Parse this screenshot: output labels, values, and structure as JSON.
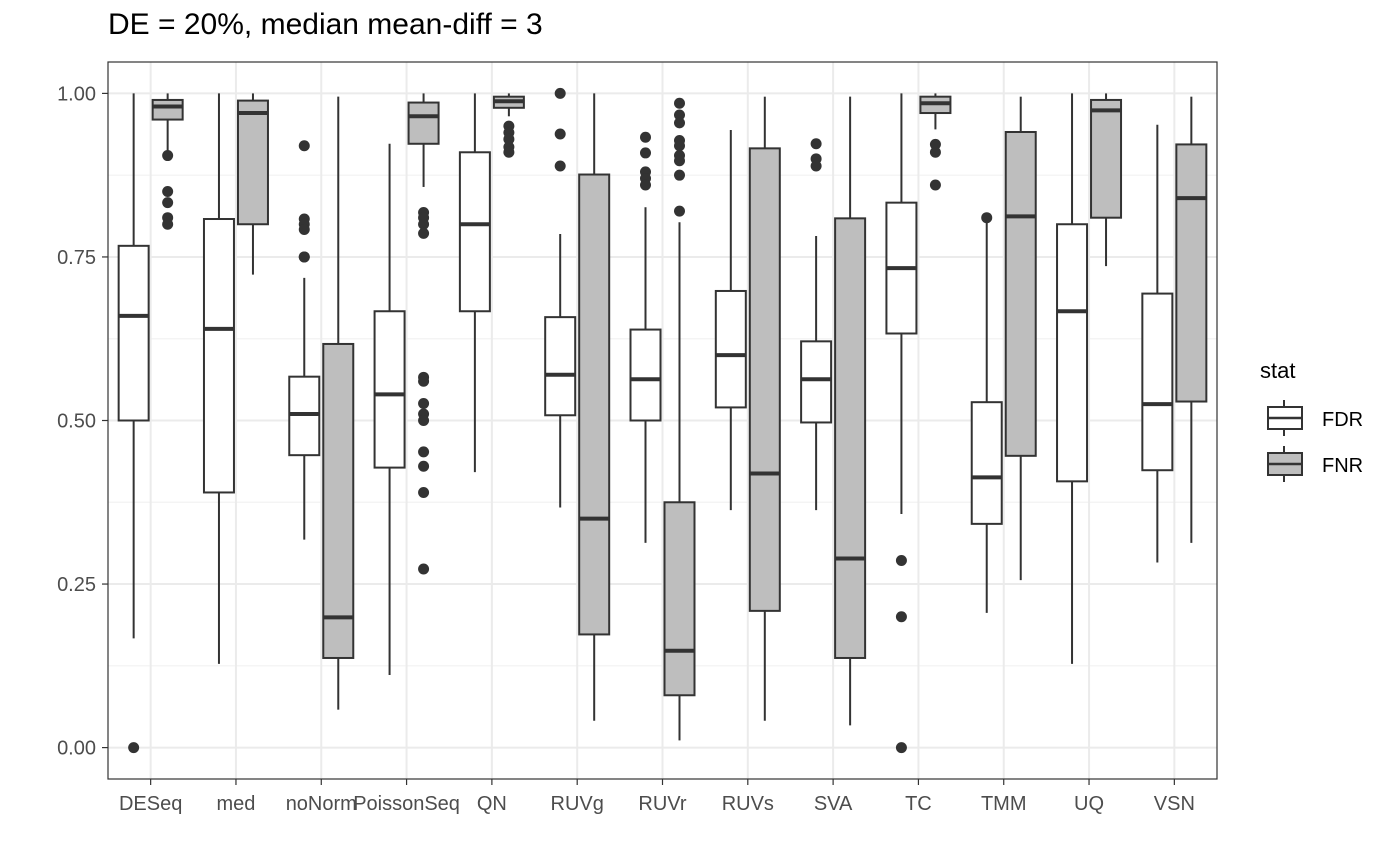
{
  "chart_data": {
    "type": "boxplot",
    "title": "DE = 20%, median mean-diff = 3",
    "xlabel": "",
    "ylabel": "",
    "ylim": [
      -0.048,
      1.048
    ],
    "y_ticks": [
      "0.00",
      "0.25",
      "0.50",
      "0.75",
      "1.00"
    ],
    "y_tick_values": [
      0,
      0.25,
      0.5,
      0.75,
      1.0
    ],
    "grid": true,
    "legend": {
      "title": "stat",
      "position": "right"
    },
    "categories": [
      "DESeq",
      "med",
      "noNorm",
      "PoissonSeq",
      "QN",
      "RUVg",
      "RUVr",
      "RUVs",
      "SVA",
      "TC",
      "TMM",
      "UQ",
      "VSN"
    ],
    "series": [
      {
        "name": "FDR",
        "fill": "#ffffff",
        "boxes": [
          {
            "lower": 0.167,
            "q1": 0.5,
            "median": 0.66,
            "q3": 0.767,
            "upper": 1.0,
            "outliers": [
              0.0
            ]
          },
          {
            "lower": 0.128,
            "q1": 0.39,
            "median": 0.64,
            "q3": 0.808,
            "upper": 1.0,
            "outliers": []
          },
          {
            "lower": 0.318,
            "q1": 0.447,
            "median": 0.51,
            "q3": 0.567,
            "upper": 0.718,
            "outliers": [
              0.92,
              0.808,
              0.8,
              0.792,
              0.75,
              0.75
            ]
          },
          {
            "lower": 0.111,
            "q1": 0.428,
            "median": 0.54,
            "q3": 0.667,
            "upper": 0.923,
            "outliers": []
          },
          {
            "lower": 0.421,
            "q1": 0.667,
            "median": 0.8,
            "q3": 0.91,
            "upper": 1.0,
            "outliers": []
          },
          {
            "lower": 0.367,
            "q1": 0.508,
            "median": 0.57,
            "q3": 0.658,
            "upper": 0.785,
            "outliers": [
              1.0,
              0.938,
              0.889
            ]
          },
          {
            "lower": 0.313,
            "q1": 0.5,
            "median": 0.563,
            "q3": 0.639,
            "upper": 0.826,
            "outliers": [
              0.933,
              0.909,
              0.88,
              0.87,
              0.86
            ]
          },
          {
            "lower": 0.363,
            "q1": 0.52,
            "median": 0.6,
            "q3": 0.698,
            "upper": 0.944,
            "outliers": []
          },
          {
            "lower": 0.363,
            "q1": 0.497,
            "median": 0.563,
            "q3": 0.621,
            "upper": 0.782,
            "outliers": [
              0.923,
              0.9,
              0.889
            ]
          },
          {
            "lower": 0.357,
            "q1": 0.633,
            "median": 0.733,
            "q3": 0.833,
            "upper": 1.0,
            "outliers": [
              0.286,
              0.2,
              0.0
            ]
          },
          {
            "lower": 0.206,
            "q1": 0.342,
            "median": 0.413,
            "q3": 0.528,
            "upper": 0.81,
            "outliers": [
              0.81
            ]
          },
          {
            "lower": 0.128,
            "q1": 0.407,
            "median": 0.667,
            "q3": 0.8,
            "upper": 1.0,
            "outliers": []
          },
          {
            "lower": 0.283,
            "q1": 0.424,
            "median": 0.525,
            "q3": 0.694,
            "upper": 0.952,
            "outliers": []
          }
        ]
      },
      {
        "name": "FNR",
        "fill": "#bebebe",
        "boxes": [
          {
            "lower": 0.905,
            "q1": 0.96,
            "median": 0.98,
            "q3": 0.99,
            "upper": 1.0,
            "outliers": [
              0.905,
              0.85,
              0.833,
              0.81,
              0.8
            ]
          },
          {
            "lower": 0.723,
            "q1": 0.8,
            "median": 0.97,
            "q3": 0.989,
            "upper": 1.0,
            "outliers": []
          },
          {
            "lower": 0.058,
            "q1": 0.137,
            "median": 0.199,
            "q3": 0.617,
            "upper": 0.995,
            "outliers": []
          },
          {
            "lower": 0.857,
            "q1": 0.923,
            "median": 0.965,
            "q3": 0.986,
            "upper": 1.0,
            "outliers": [
              0.818,
              0.81,
              0.8,
              0.786,
              0.566,
              0.56,
              0.526,
              0.51,
              0.5,
              0.452,
              0.43,
              0.39,
              0.273
            ]
          },
          {
            "lower": 0.965,
            "q1": 0.978,
            "median": 0.988,
            "q3": 0.995,
            "upper": 1.0,
            "outliers": [
              0.95,
              0.94,
              0.93,
              0.918,
              0.91
            ]
          },
          {
            "lower": 0.041,
            "q1": 0.173,
            "median": 0.35,
            "q3": 0.876,
            "upper": 1.0,
            "outliers": []
          },
          {
            "lower": 0.011,
            "q1": 0.08,
            "median": 0.148,
            "q3": 0.375,
            "upper": 0.803,
            "outliers": [
              0.985,
              0.967,
              0.955,
              0.928,
              0.92,
              0.905,
              0.897,
              0.875,
              0.82
            ]
          },
          {
            "lower": 0.041,
            "q1": 0.209,
            "median": 0.419,
            "q3": 0.916,
            "upper": 0.995,
            "outliers": []
          },
          {
            "lower": 0.034,
            "q1": 0.137,
            "median": 0.289,
            "q3": 0.809,
            "upper": 0.995,
            "outliers": []
          },
          {
            "lower": 0.945,
            "q1": 0.97,
            "median": 0.985,
            "q3": 0.995,
            "upper": 1.0,
            "outliers": [
              0.922,
              0.91,
              0.86
            ]
          },
          {
            "lower": 0.256,
            "q1": 0.446,
            "median": 0.812,
            "q3": 0.941,
            "upper": 0.995,
            "outliers": []
          },
          {
            "lower": 0.736,
            "q1": 0.81,
            "median": 0.974,
            "q3": 0.99,
            "upper": 1.0,
            "outliers": []
          },
          {
            "lower": 0.313,
            "q1": 0.529,
            "median": 0.84,
            "q3": 0.922,
            "upper": 0.995,
            "outliers": []
          }
        ]
      }
    ]
  }
}
